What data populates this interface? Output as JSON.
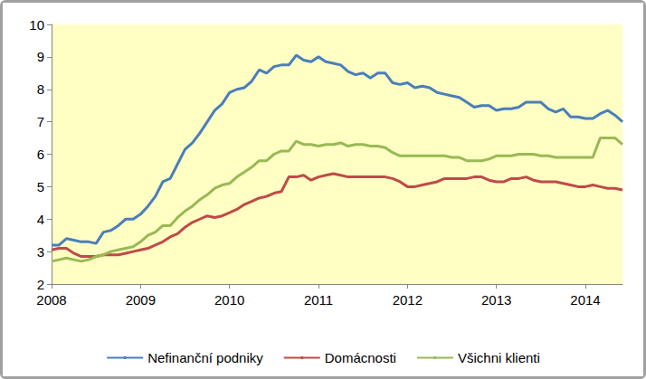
{
  "chart_data": {
    "type": "line",
    "categories": [
      "2008",
      null,
      null,
      null,
      null,
      null,
      null,
      null,
      null,
      null,
      null,
      null,
      "2009",
      null,
      null,
      null,
      null,
      null,
      null,
      null,
      null,
      null,
      null,
      null,
      "2010",
      null,
      null,
      null,
      null,
      null,
      null,
      null,
      null,
      null,
      null,
      null,
      "2011",
      null,
      null,
      null,
      null,
      null,
      null,
      null,
      null,
      null,
      null,
      null,
      "2012",
      null,
      null,
      null,
      null,
      null,
      null,
      null,
      null,
      null,
      null,
      null,
      "2013",
      null,
      null,
      null,
      null,
      null,
      null,
      null,
      null,
      null,
      null,
      null,
      "2014",
      null,
      null,
      null,
      null,
      null
    ],
    "series": [
      {
        "name": "Nefinanční podniky",
        "color": "#4a7ebb",
        "values": [
          3.2,
          3.2,
          3.4,
          3.35,
          3.3,
          3.3,
          3.25,
          3.6,
          3.65,
          3.8,
          4.0,
          4.0,
          4.15,
          4.4,
          4.7,
          5.15,
          5.25,
          5.7,
          6.15,
          6.35,
          6.65,
          7.0,
          7.35,
          7.55,
          7.9,
          8.0,
          8.05,
          8.25,
          8.6,
          8.5,
          8.7,
          8.75,
          8.75,
          9.05,
          8.9,
          8.85,
          9.0,
          8.85,
          8.8,
          8.75,
          8.55,
          8.45,
          8.5,
          8.35,
          8.5,
          8.5,
          8.2,
          8.15,
          8.2,
          8.05,
          8.1,
          8.05,
          7.9,
          7.85,
          7.8,
          7.75,
          7.6,
          7.45,
          7.5,
          7.5,
          7.35,
          7.4,
          7.4,
          7.45,
          7.6,
          7.6,
          7.6,
          7.4,
          7.3,
          7.4,
          7.15,
          7.15,
          7.1,
          7.1,
          7.25,
          7.35,
          7.2,
          7.0
        ]
      },
      {
        "name": "Domácnosti",
        "color": "#be4b48",
        "values": [
          3.05,
          3.1,
          3.1,
          2.95,
          2.85,
          2.85,
          2.85,
          2.9,
          2.9,
          2.9,
          2.95,
          3.0,
          3.05,
          3.1,
          3.2,
          3.3,
          3.45,
          3.55,
          3.75,
          3.9,
          4.0,
          4.1,
          4.05,
          4.1,
          4.2,
          4.3,
          4.45,
          4.55,
          4.65,
          4.7,
          4.8,
          4.85,
          5.3,
          5.3,
          5.35,
          5.2,
          5.3,
          5.35,
          5.4,
          5.35,
          5.3,
          5.3,
          5.3,
          5.3,
          5.3,
          5.3,
          5.25,
          5.15,
          5.0,
          5.0,
          5.05,
          5.1,
          5.15,
          5.25,
          5.25,
          5.25,
          5.25,
          5.3,
          5.3,
          5.2,
          5.15,
          5.15,
          5.25,
          5.25,
          5.3,
          5.2,
          5.15,
          5.15,
          5.15,
          5.1,
          5.05,
          5.0,
          5.0,
          5.05,
          5.0,
          4.95,
          4.95,
          4.9
        ]
      },
      {
        "name": "Všichni klienti",
        "color": "#98b954",
        "values": [
          2.7,
          2.75,
          2.8,
          2.75,
          2.7,
          2.75,
          2.85,
          2.9,
          3.0,
          3.05,
          3.1,
          3.15,
          3.3,
          3.5,
          3.6,
          3.8,
          3.8,
          4.05,
          4.25,
          4.4,
          4.6,
          4.75,
          4.95,
          5.05,
          5.1,
          5.3,
          5.45,
          5.6,
          5.8,
          5.8,
          6.0,
          6.1,
          6.1,
          6.4,
          6.3,
          6.3,
          6.25,
          6.3,
          6.3,
          6.35,
          6.25,
          6.3,
          6.3,
          6.25,
          6.25,
          6.2,
          6.05,
          5.95,
          5.95,
          5.95,
          5.95,
          5.95,
          5.95,
          5.95,
          5.9,
          5.9,
          5.8,
          5.8,
          5.8,
          5.85,
          5.95,
          5.95,
          5.95,
          6.0,
          6.0,
          6.0,
          5.95,
          5.95,
          5.9,
          5.9,
          5.9,
          5.9,
          5.9,
          5.9,
          6.5,
          6.5,
          6.5,
          6.3
        ]
      }
    ],
    "ylim": [
      2,
      10
    ],
    "yticks": [
      2,
      3,
      4,
      5,
      6,
      7,
      8,
      9,
      10
    ],
    "grid": false,
    "legend": "bottom"
  }
}
